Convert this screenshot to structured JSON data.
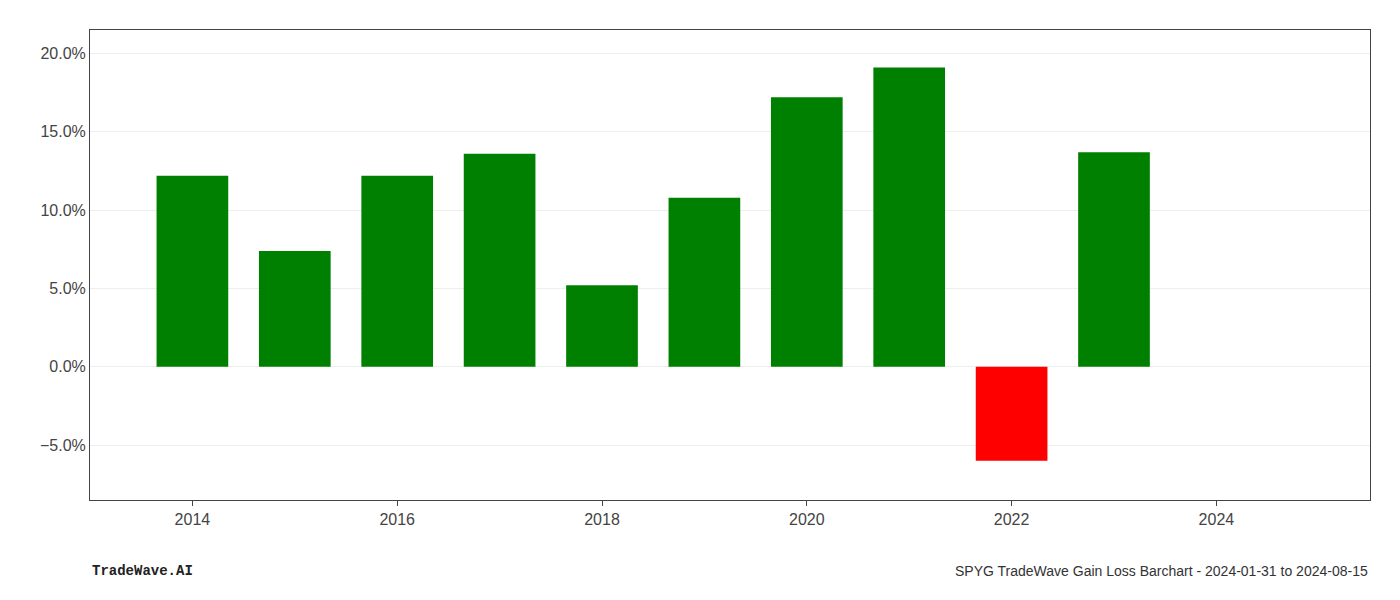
{
  "chart_data": {
    "type": "bar",
    "x": [
      2014,
      2015,
      2016,
      2017,
      2018,
      2019,
      2020,
      2021,
      2022,
      2023
    ],
    "values": [
      0.122,
      0.074,
      0.122,
      0.136,
      0.052,
      0.108,
      0.172,
      0.191,
      -0.06,
      0.137
    ],
    "colors": [
      "#008000",
      "#008000",
      "#008000",
      "#008000",
      "#008000",
      "#008000",
      "#008000",
      "#008000",
      "#ff0000",
      "#008000"
    ],
    "ylim": [
      -0.085,
      0.215
    ],
    "yticks": [
      {
        "value": -0.05,
        "label": "−5.0%"
      },
      {
        "value": 0.0,
        "label": "0.0%"
      },
      {
        "value": 0.05,
        "label": "5.0%"
      },
      {
        "value": 0.1,
        "label": "10.0%"
      },
      {
        "value": 0.15,
        "label": "15.0%"
      },
      {
        "value": 0.2,
        "label": "20.0%"
      }
    ],
    "xlim": [
      2013.0,
      2025.5
    ],
    "xticks": [
      2014,
      2016,
      2018,
      2020,
      2022,
      2024
    ],
    "grid": true,
    "annotations": [
      "TradeWave.AI",
      "SPYG TradeWave Gain Loss Barchart - 2024-01-31 to 2024-08-15"
    ]
  }
}
